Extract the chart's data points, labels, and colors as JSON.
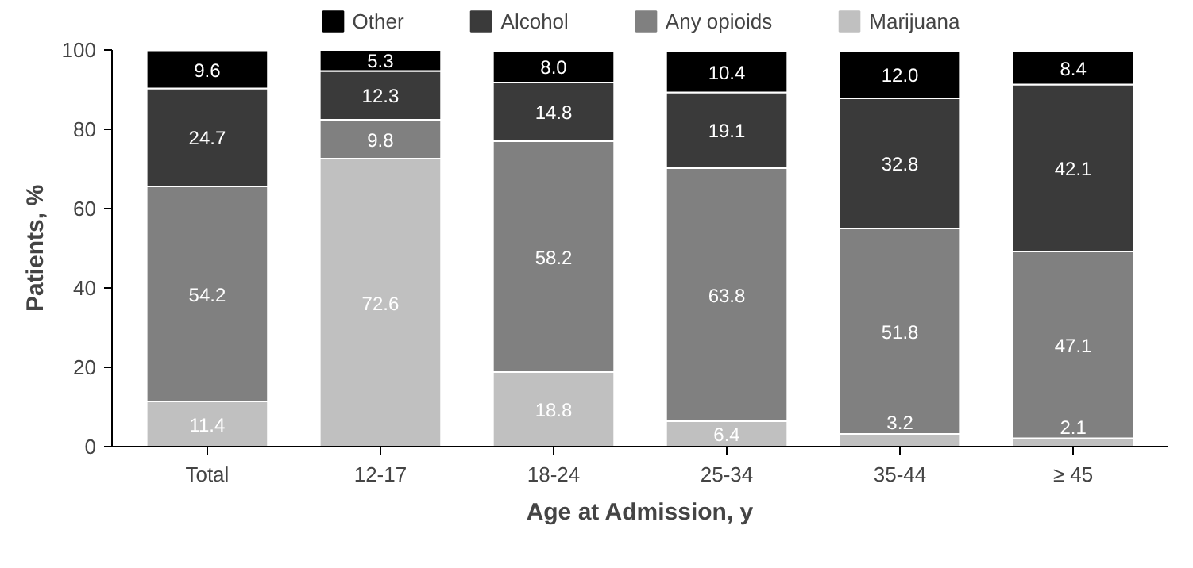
{
  "chart_data": {
    "type": "bar",
    "stacked": true,
    "xlabel": "Age at Admission, y",
    "ylabel": "Patients, %",
    "categories": [
      "Total",
      "12-17",
      "18-24",
      "25-34",
      "35-44",
      "≥ 45"
    ],
    "series": [
      {
        "name": "Marijuana",
        "color": "#c0c0c0",
        "values": [
          11.4,
          72.6,
          18.8,
          6.4,
          3.2,
          2.1
        ],
        "value_labels": [
          "11.4",
          "72.6",
          "18.8",
          "6.4",
          "3.2",
          "2.1"
        ]
      },
      {
        "name": "Any opioids",
        "color": "#808080",
        "values": [
          54.2,
          9.8,
          58.2,
          63.8,
          51.8,
          47.1
        ],
        "value_labels": [
          "54.2",
          "9.8",
          "58.2",
          "63.8",
          "51.8",
          "47.1"
        ]
      },
      {
        "name": "Alcohol",
        "color": "#3a3a3a",
        "values": [
          24.7,
          12.3,
          14.8,
          19.1,
          32.8,
          42.1
        ],
        "value_labels": [
          "24.7",
          "12.3",
          "14.8",
          "19.1",
          "32.8",
          "42.1"
        ]
      },
      {
        "name": "Other",
        "color": "#000000",
        "values": [
          9.6,
          5.3,
          8.0,
          10.4,
          12.0,
          8.4
        ],
        "value_labels": [
          "9.6",
          "5.3",
          "8.0",
          "10.4",
          "12.0",
          "8.4"
        ]
      }
    ],
    "ylim": [
      0,
      100
    ],
    "yticks": [
      0,
      20,
      40,
      60,
      80,
      100
    ],
    "grid": false,
    "legend": "top"
  }
}
